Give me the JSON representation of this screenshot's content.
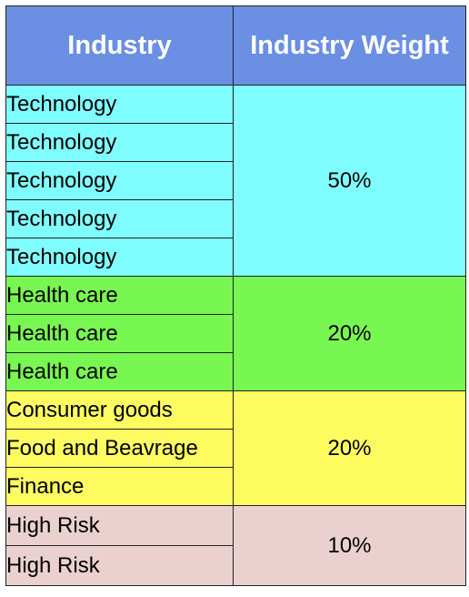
{
  "table": {
    "headers": [
      "Industry",
      "Industry Weight"
    ],
    "groups": [
      {
        "color": "#7ffcfd",
        "weight": "50%",
        "rows": [
          "Technology",
          "Technology",
          "Technology",
          "Technology",
          "Technology"
        ]
      },
      {
        "color": "#78f651",
        "weight": "20%",
        "rows": [
          "Health care",
          "Health care",
          "Health care"
        ]
      },
      {
        "color": "#fdfb60",
        "weight": "20%",
        "rows": [
          "Consumer goods",
          "Food and Beavrage",
          "Finance"
        ]
      },
      {
        "color": "#ead1cf",
        "weight": "10%",
        "rows": [
          "High Risk",
          "High Risk"
        ]
      }
    ]
  }
}
